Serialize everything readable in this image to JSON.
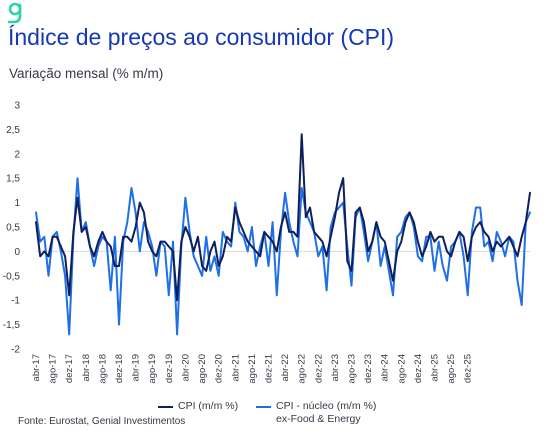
{
  "header": {
    "logo_text": "g",
    "title": "Índice de preços ao consumidor (CPI)",
    "subtitle": "Variação mensal (% m/m)"
  },
  "footer": {
    "source": "Fonte: Eurostat, Genial Investimentos"
  },
  "colors": {
    "brand": "#1538b5",
    "logo": "#2bd3a8",
    "cpi": "#0f1f5c",
    "core": "#1f6fe6",
    "grid": "#d9d9d9",
    "text": "#333a45"
  },
  "chart_data": {
    "type": "line",
    "ylim": [
      -2,
      3
    ],
    "yticks": [
      "3",
      "2,5",
      "2",
      "1,5",
      "1",
      "0,5",
      "0",
      "-0,5",
      "-1",
      "-1,5",
      "-2"
    ],
    "xticks": [
      "abr-17",
      "ago-17",
      "dez-17",
      "abr-18",
      "ago-18",
      "dez-18",
      "abr-19",
      "ago-19",
      "dez-19",
      "abr-20",
      "ago-20",
      "dez-20",
      "abr-21",
      "ago-21",
      "dez-21",
      "abr-22",
      "ago-22",
      "dez-22",
      "abr-23",
      "ago-23",
      "dez-23",
      "abr-24",
      "ago-24",
      "dez-24",
      "abr-25",
      "ago-25",
      "dez-25"
    ],
    "x_start": "2017-04",
    "grid": false,
    "legend": "bottom",
    "series": [
      {
        "name": "CPI (m/m %)",
        "values": [
          0.6,
          -0.1,
          0.0,
          -0.1,
          0.3,
          0.3,
          0.1,
          -0.1,
          -0.9,
          0.4,
          1.1,
          0.4,
          0.5,
          0.1,
          -0.1,
          0.2,
          0.4,
          0.2,
          0.1,
          -0.3,
          -0.3,
          0.3,
          0.3,
          0.2,
          0.5,
          1.0,
          0.8,
          0.2,
          0.0,
          -0.1,
          0.2,
          0.2,
          0.1,
          0.0,
          -1.0,
          0.2,
          0.5,
          0.3,
          0.0,
          0.3,
          -0.3,
          -0.4,
          0.0,
          0.2,
          -0.3,
          -0.1,
          0.3,
          0.2,
          0.9,
          0.6,
          0.4,
          0.2,
          0.1,
          0.0,
          -0.1,
          0.4,
          0.3,
          0.2,
          0.0,
          0.5,
          0.8,
          0.4,
          0.4,
          0.3,
          2.4,
          0.7,
          0.9,
          0.4,
          0.3,
          0.2,
          -0.1,
          0.3,
          0.7,
          1.2,
          1.5,
          -0.2,
          -0.4,
          0.8,
          0.9,
          0.6,
          0.0,
          0.2,
          0.6,
          0.3,
          0.2,
          -0.2,
          -0.6,
          0.0,
          0.2,
          0.6,
          0.8,
          0.6,
          0.2,
          -0.1,
          0.1,
          0.4,
          0.2,
          0.3,
          0.3,
          0.0,
          -0.1,
          0.2,
          0.4,
          0.3,
          -0.2,
          0.3,
          0.5,
          0.6,
          0.4,
          0.3,
          0.0,
          0.2,
          0.1,
          0.2,
          0.3,
          0.1,
          -0.1,
          0.3,
          0.6,
          1.2
        ]
      },
      {
        "name": "CPI - núcleo (m/m %) ex-Food & Energy",
        "values": [
          0.8,
          0.2,
          0.3,
          -0.5,
          0.3,
          0.4,
          0.0,
          -0.5,
          -1.7,
          0.3,
          1.5,
          0.4,
          0.6,
          0.1,
          -0.3,
          0.1,
          0.3,
          0.2,
          -0.8,
          0.3,
          -1.5,
          0.2,
          0.6,
          1.3,
          0.8,
          0.0,
          0.6,
          0.4,
          0.1,
          -0.5,
          0.2,
          0.1,
          -0.9,
          0.2,
          -1.7,
          0.1,
          1.1,
          0.4,
          -0.1,
          -0.3,
          -0.5,
          0.3,
          -0.4,
          -0.1,
          -0.5,
          0.4,
          0.2,
          0.1,
          1.0,
          0.4,
          0.3,
          0.0,
          0.5,
          -0.3,
          0.1,
          0.4,
          -0.3,
          0.6,
          -0.9,
          0.4,
          1.2,
          0.6,
          0.2,
          -0.1,
          1.3,
          0.8,
          0.6,
          0.4,
          -0.1,
          0.1,
          -0.8,
          0.5,
          0.8,
          0.9,
          1.0,
          0.1,
          -0.7,
          0.7,
          0.9,
          0.4,
          -0.2,
          0.2,
          0.6,
          -0.3,
          0.1,
          -0.4,
          -0.9,
          0.3,
          0.4,
          0.7,
          0.8,
          0.5,
          -0.1,
          -0.2,
          0.3,
          0.3,
          -0.4,
          0.2,
          -0.3,
          -0.6,
          0.1,
          0.2,
          0.4,
          -0.1,
          -0.9,
          0.4,
          0.9,
          0.9,
          0.1,
          0.2,
          -0.2,
          0.4,
          0.2,
          -0.1,
          0.3,
          0.2,
          -0.6,
          -1.1,
          0.6,
          0.8
        ]
      }
    ]
  }
}
